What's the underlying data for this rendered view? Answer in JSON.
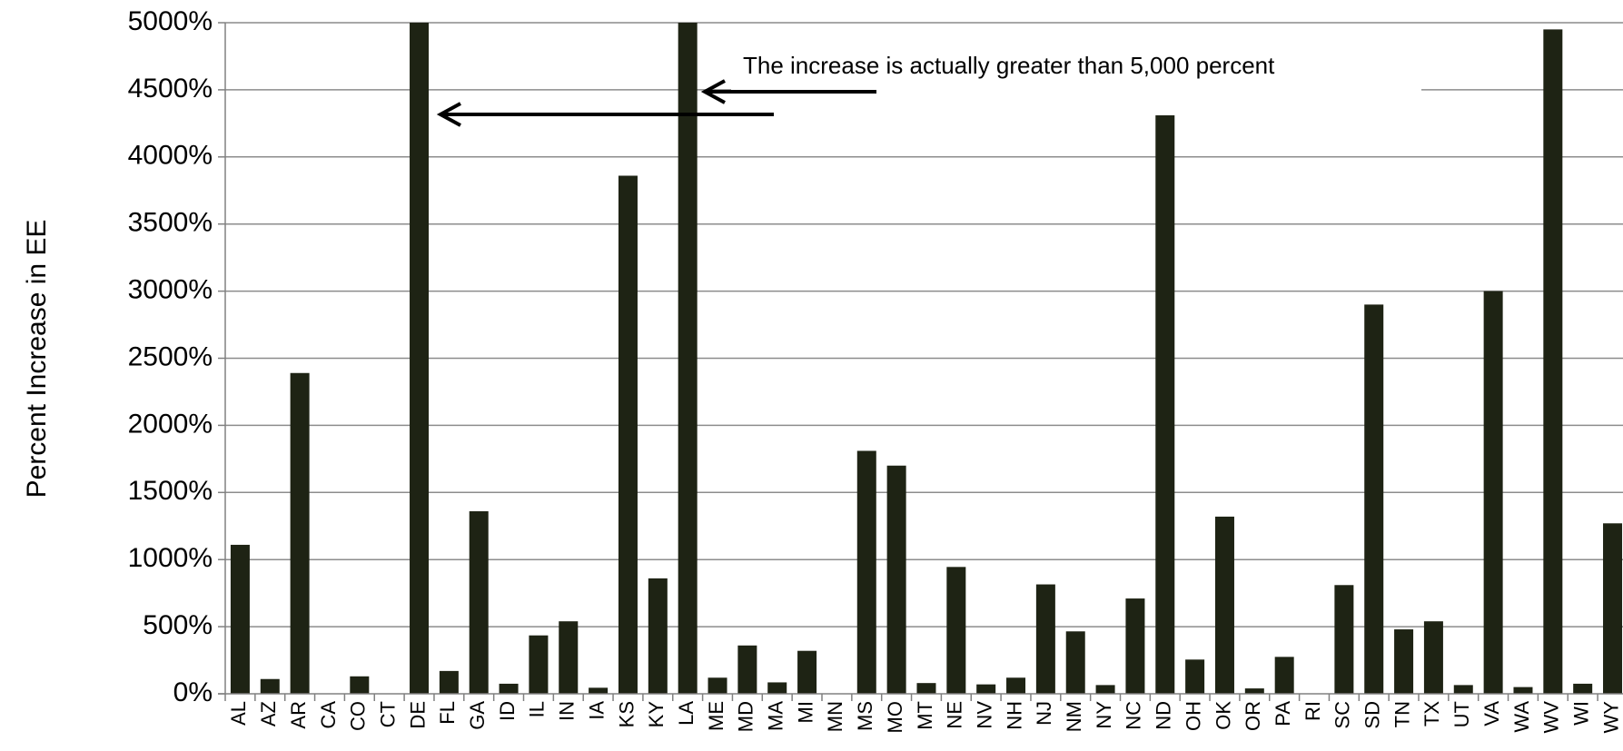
{
  "chart_data": {
    "type": "bar",
    "ylabel": "Percent Increase in EE",
    "ylim": [
      0,
      5000
    ],
    "y_ticks": [
      "0%",
      "500%",
      "1000%",
      "1500%",
      "2000%",
      "2500%",
      "3000%",
      "3500%",
      "4000%",
      "4500%",
      "5000%"
    ],
    "grid": true,
    "legend": "none",
    "bar_color": "#1e2314",
    "categories": [
      "AL",
      "AZ",
      "AR",
      "CA",
      "CO",
      "CT",
      "DE",
      "FL",
      "GA",
      "ID",
      "IL",
      "IN",
      "IA",
      "KS",
      "KY",
      "LA",
      "ME",
      "MD",
      "MA",
      "MI",
      "MN",
      "MS",
      "MO",
      "MT",
      "NE",
      "NV",
      "NH",
      "NJ",
      "NM",
      "NY",
      "NC",
      "ND",
      "OH",
      "OK",
      "OR",
      "PA",
      "RI",
      "SC",
      "SD",
      "TN",
      "TX",
      "UT",
      "VA",
      "WA",
      "WV",
      "WI",
      "WY"
    ],
    "values": [
      1110,
      110,
      2390,
      0,
      130,
      0,
      5000,
      170,
      1360,
      75,
      435,
      540,
      45,
      3860,
      860,
      5000,
      120,
      360,
      85,
      320,
      0,
      1810,
      1700,
      80,
      945,
      70,
      120,
      815,
      465,
      65,
      710,
      4310,
      255,
      1320,
      40,
      275,
      0,
      810,
      2900,
      480,
      540,
      65,
      3000,
      50,
      4950,
      75,
      1270
    ],
    "annotations": [
      {
        "text": "The increase is actually greater than 5,000 percent",
        "points_to": [
          "DE",
          "LA"
        ]
      }
    ]
  }
}
